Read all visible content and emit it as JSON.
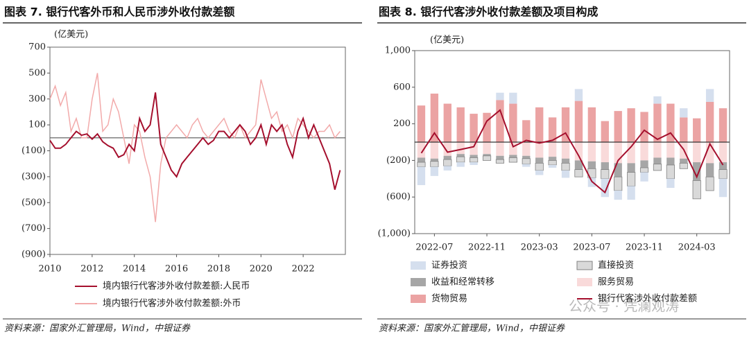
{
  "chart_data": [
    {
      "type": "line",
      "title": "图表 7. 银行代客外币和人民币涉外收付款差额",
      "unit": "(亿美元)",
      "source": "资料来源：国家外汇管理局，Wind，中银证券",
      "x": [
        2010,
        2010.25,
        2010.5,
        2010.75,
        2011,
        2011.25,
        2011.5,
        2011.75,
        2012,
        2012.25,
        2012.5,
        2012.75,
        2013,
        2013.25,
        2013.5,
        2013.75,
        2014,
        2014.25,
        2014.5,
        2014.75,
        2015,
        2015.25,
        2015.5,
        2015.75,
        2016,
        2016.25,
        2016.5,
        2016.75,
        2017,
        2017.25,
        2017.5,
        2017.75,
        2018,
        2018.25,
        2018.5,
        2018.75,
        2019,
        2019.25,
        2019.5,
        2019.75,
        2020,
        2020.25,
        2020.5,
        2020.75,
        2021,
        2021.25,
        2021.5,
        2021.75,
        2022,
        2022.25,
        2022.5,
        2022.75,
        2023,
        2023.25,
        2023.5,
        2023.75
      ],
      "series": [
        {
          "name": "境内银行代客涉外收付款差额:人民币",
          "color": "#a50f2d",
          "values": [
            -20,
            -80,
            -80,
            -50,
            0,
            50,
            20,
            30,
            -10,
            30,
            -30,
            -60,
            -80,
            -150,
            -130,
            -50,
            -100,
            150,
            50,
            100,
            350,
            -50,
            -150,
            -250,
            -300,
            -200,
            -150,
            -100,
            -50,
            0,
            -50,
            -20,
            50,
            50,
            0,
            50,
            100,
            50,
            -50,
            0,
            100,
            -50,
            100,
            50,
            100,
            -50,
            -150,
            50,
            150,
            0,
            100,
            0,
            -100,
            -200,
            -400,
            -250
          ]
        },
        {
          "name": "境内银行代客涉外收付款差额:外币",
          "color": "#f2aaaa",
          "values": [
            300,
            400,
            250,
            350,
            50,
            150,
            0,
            0,
            300,
            500,
            50,
            100,
            300,
            200,
            0,
            -200,
            100,
            50,
            -150,
            -300,
            -650,
            -200,
            0,
            50,
            100,
            50,
            0,
            100,
            150,
            50,
            0,
            50,
            100,
            150,
            50,
            0,
            100,
            0,
            50,
            100,
            450,
            300,
            150,
            200,
            50,
            100,
            0,
            150,
            100,
            50,
            0,
            50,
            50,
            100,
            0,
            50
          ]
        }
      ],
      "xlim": [
        2010,
        2024
      ],
      "xticks": [
        2010,
        2012,
        2014,
        2016,
        2018,
        2020,
        2022
      ],
      "ylim": [
        -900,
        700
      ],
      "yticks": [
        700,
        500,
        300,
        100,
        {
          "value": -100,
          "label": "(100)"
        },
        {
          "value": -300,
          "label": "(300)"
        },
        {
          "value": -500,
          "label": "(500)"
        },
        {
          "value": -700,
          "label": "(700)"
        },
        {
          "value": -900,
          "label": "(900)"
        }
      ],
      "negative_tick_color": "#c00000",
      "zero_line_color": "#555555"
    },
    {
      "type": "stacked_bar",
      "title": "图表 8. 银行代客涉外收付款差额及项目构成",
      "unit": "(亿美元)",
      "source": "资料来源：国家外汇管理局，Wind，中银证券",
      "watermark": "公众号 · 凭澜观涛",
      "categories": [
        null,
        "2022-07",
        null,
        null,
        null,
        "2022-11",
        null,
        null,
        null,
        "2023-03",
        null,
        null,
        null,
        "2023-07",
        null,
        null,
        null,
        "2023-11",
        null,
        null,
        null,
        "2024-03",
        null,
        null
      ],
      "series": [
        {
          "name": "证券投资",
          "color": "#d5dfee",
          "values": [
            -200,
            -100,
            -50,
            -50,
            -30,
            0,
            80,
            120,
            -30,
            -50,
            -30,
            -80,
            130,
            -100,
            -200,
            -100,
            -150,
            -100,
            80,
            -100,
            100,
            0,
            140,
            -200
          ]
        },
        {
          "name": "直接投资",
          "color": "#d9d9d9",
          "stroke": "#808080",
          "values": [
            -50,
            -60,
            -70,
            -60,
            -50,
            -50,
            -40,
            -50,
            -60,
            -80,
            -50,
            -80,
            -80,
            -100,
            -100,
            -150,
            -150,
            -50,
            -70,
            -150,
            -60,
            -200,
            -150,
            -100
          ]
        },
        {
          "name": "收益和经常转移",
          "color": "#a6a6a6",
          "values": [
            -50,
            -30,
            -40,
            -30,
            -30,
            -20,
            -40,
            -30,
            -30,
            -60,
            -40,
            -50,
            -100,
            -80,
            -80,
            -150,
            -100,
            -80,
            -70,
            -80,
            -50,
            -200,
            -150,
            -80
          ]
        },
        {
          "name": "服务贸易",
          "color": "#f9dada",
          "values": [
            -170,
            -180,
            -150,
            -130,
            -140,
            -130,
            -150,
            -140,
            -150,
            -170,
            -160,
            -180,
            -200,
            -210,
            -220,
            -230,
            -230,
            -200,
            -170,
            -170,
            -180,
            -220,
            -230,
            -220
          ]
        },
        {
          "name": "货物贸易",
          "color": "#eba3a3",
          "values": [
            400,
            530,
            420,
            380,
            310,
            320,
            460,
            420,
            240,
            380,
            270,
            380,
            450,
            380,
            230,
            340,
            370,
            330,
            420,
            420,
            270,
            260,
            440,
            370
          ]
        },
        {
          "name": "银行代客涉外收付款差额",
          "color": "#a50f2d",
          "type": "line",
          "values": [
            -120,
            100,
            -110,
            -80,
            -50,
            230,
            350,
            -50,
            20,
            -10,
            20,
            100,
            -150,
            -430,
            -550,
            -200,
            -50,
            130,
            30,
            100,
            -80,
            -380,
            -20,
            -250
          ]
        }
      ],
      "ylim": [
        -1000,
        1000
      ],
      "yticks": [
        {
          "value": 1000,
          "label": "1,000"
        },
        600,
        200,
        {
          "value": -200,
          "label": "(200)"
        },
        {
          "value": -600,
          "label": "(600)"
        },
        {
          "value": -1000,
          "label": "(1,000)"
        }
      ],
      "negative_tick_color": "#c00000",
      "zero_line_color": "#333333"
    }
  ]
}
